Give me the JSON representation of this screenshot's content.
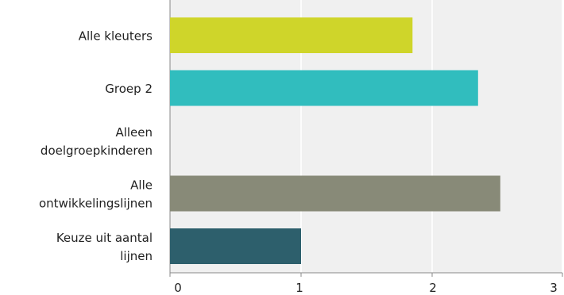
{
  "chart_data": {
    "type": "bar",
    "orientation": "horizontal",
    "categories": [
      [
        "Alle kleuters"
      ],
      [
        "Groep 2"
      ],
      [
        "Alleen",
        "doelgroepkinderen"
      ],
      [
        "Alle",
        "ontwikkelingslijnen"
      ],
      [
        "Keuze uit aantal",
        "lijnen"
      ]
    ],
    "values": [
      1.85,
      2.35,
      0,
      2.52,
      1.0
    ],
    "colors": [
      "#cfd52a",
      "#31bdbe",
      "#ffffff",
      "#888a78",
      "#2d5f6c"
    ],
    "xlim": [
      0,
      3
    ],
    "xticks": [
      "0",
      "1",
      "2",
      "3"
    ],
    "grid": true,
    "plot_background": "#f0f0f0",
    "title": "",
    "xlabel": "",
    "ylabel": ""
  }
}
